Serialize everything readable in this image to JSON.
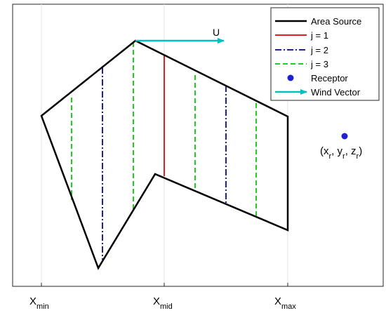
{
  "axes": {
    "x_ticks": [
      {
        "key": "xmin",
        "base": "X",
        "sub": "min"
      },
      {
        "key": "xmid",
        "base": "X",
        "sub": "mid"
      },
      {
        "key": "xmax",
        "base": "X",
        "sub": "max"
      }
    ],
    "grid": true
  },
  "wind": {
    "label": "U",
    "color": "#00bfbf"
  },
  "receptor": {
    "color": "#1f1fd6",
    "label": {
      "open": "(",
      "x": "x",
      "x_sub": "r",
      "y": "y",
      "y_sub": "r",
      "z": "z",
      "z_sub": "r",
      "sep": ", ",
      "close": ")"
    }
  },
  "legend": {
    "placement": "top-right",
    "entries": [
      {
        "label": "Area Source",
        "color": "#000000",
        "style": "solid"
      },
      {
        "label": "j = 1",
        "color": "#e02020",
        "style": "solid"
      },
      {
        "label": "j = 2",
        "color": "#1f1fa0",
        "style": "dashdot"
      },
      {
        "label": "j = 3",
        "color": "#22cc22",
        "style": "dashed"
      },
      {
        "label": "Receptor",
        "color": "#1f1fd6",
        "style": "marker"
      },
      {
        "label": "Wind Vector",
        "color": "#00bfbf",
        "style": "arrow"
      }
    ]
  },
  "colors": {
    "source": "#000000",
    "j1": "#e02020",
    "j2": "#1f1fa0",
    "j3": "#22cc22"
  }
}
